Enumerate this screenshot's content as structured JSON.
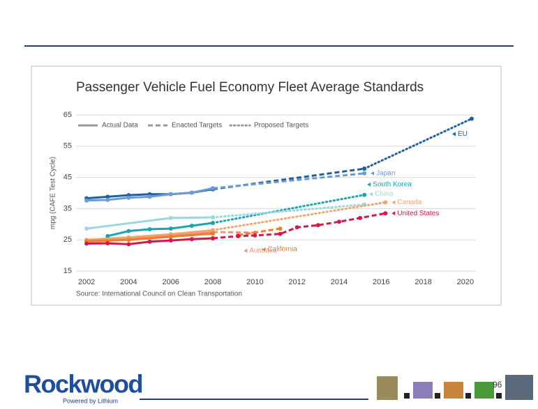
{
  "slide": {
    "page_number": "96",
    "logo": "Rockwood",
    "logo_tagline": "Powered by Lithium"
  },
  "chart_data": {
    "type": "line",
    "title": "Passenger Vehicle Fuel Economy Fleet Average Standards",
    "y_label": "mpg (CAFE Test Cycle)",
    "source": "Source: International Council on Clean Transportation",
    "xlim": [
      2001.5,
      2020.5
    ],
    "xticks": [
      2002,
      2004,
      2006,
      2008,
      2010,
      2012,
      2014,
      2016,
      2018,
      2020
    ],
    "ylim": [
      15,
      65
    ],
    "yticks": [
      15,
      25,
      35,
      45,
      55,
      65
    ],
    "grid": true,
    "legend": [
      {
        "label": "Actual Data",
        "style": "actual"
      },
      {
        "label": "Enacted Targets",
        "style": "enacted"
      },
      {
        "label": "Proposed Targets",
        "style": "proposed"
      }
    ],
    "series": [
      {
        "name": "EU",
        "color": "#1f5fa0",
        "actual": {
          "x": [
            2002,
            2003,
            2004,
            2005,
            2006,
            2007,
            2008
          ],
          "values": [
            38.3,
            38.8,
            39.3,
            39.6,
            39.6,
            40.1,
            41.2
          ]
        },
        "enacted": {
          "x": [
            2008,
            2015.2
          ],
          "values": [
            41.2,
            47.8
          ]
        },
        "proposed": {
          "x": [
            2015.2,
            2020.3
          ],
          "values": [
            47.8,
            63.8
          ]
        }
      },
      {
        "name": "Japan",
        "color": "#6b9bd1",
        "actual": {
          "x": [
            2002,
            2003,
            2004,
            2005,
            2006,
            2007,
            2008
          ],
          "values": [
            37.6,
            37.8,
            38.5,
            38.8,
            39.6,
            40.1,
            41.5
          ]
        },
        "enacted": {
          "x": [
            2008,
            2015.2
          ],
          "values": [
            41.5,
            46.3
          ]
        }
      },
      {
        "name": "South Korea",
        "color": "#1aa3b0",
        "actual": {
          "x": [
            2003,
            2004,
            2005,
            2006,
            2007,
            2008
          ],
          "values": [
            26.2,
            27.8,
            28.4,
            28.6,
            29.5,
            30.4
          ]
        },
        "proposed": {
          "x": [
            2008,
            2015.2
          ],
          "values": [
            30.4,
            39.4
          ]
        }
      },
      {
        "name": "China",
        "color": "#9dd6e0",
        "actual": {
          "x": [
            2002,
            2006,
            2008
          ],
          "values": [
            28.6,
            32.0,
            32.2
          ]
        },
        "proposed": {
          "x": [
            2008,
            2015.2
          ],
          "values": [
            32.2,
            36.3
          ]
        }
      },
      {
        "name": "Canada",
        "color": "#f4a671",
        "actual": {
          "x": [
            2002,
            2004,
            2006,
            2008
          ],
          "values": [
            25.0,
            25.8,
            26.8,
            28.1
          ]
        },
        "proposed": {
          "x": [
            2008,
            2016.2
          ],
          "values": [
            28.1,
            37.0
          ]
        }
      },
      {
        "name": "Australia",
        "color": "#e9967a",
        "actual": {
          "x": [
            2002,
            2004,
            2006,
            2008
          ],
          "values": [
            24.8,
            25.3,
            26.3,
            27.5
          ]
        },
        "enacted": {
          "x": [
            2008,
            2010
          ],
          "values": [
            27.5,
            27.3
          ]
        }
      },
      {
        "name": "California",
        "color": "#ee7d2a",
        "actual": {
          "x": [
            2002,
            2004,
            2006,
            2008
          ],
          "values": [
            24.5,
            25.0,
            26.0,
            27.0
          ]
        },
        "enacted": {
          "x": [
            2009.2,
            2011.2
          ],
          "values": [
            26.5,
            28.6
          ]
        }
      },
      {
        "name": "United States",
        "color": "#d4184a",
        "actual": {
          "x": [
            2002,
            2003,
            2004,
            2005,
            2006,
            2007,
            2008
          ],
          "values": [
            23.8,
            23.9,
            23.6,
            24.4,
            24.8,
            25.2,
            25.5
          ]
        },
        "enacted": {
          "x": [
            2008,
            2009.2,
            2010,
            2011.2,
            2012,
            2013,
            2014,
            2015,
            2016.2
          ],
          "values": [
            25.5,
            26.2,
            26.4,
            26.9,
            29.0,
            29.7,
            30.8,
            32.0,
            33.5
          ]
        }
      }
    ]
  }
}
